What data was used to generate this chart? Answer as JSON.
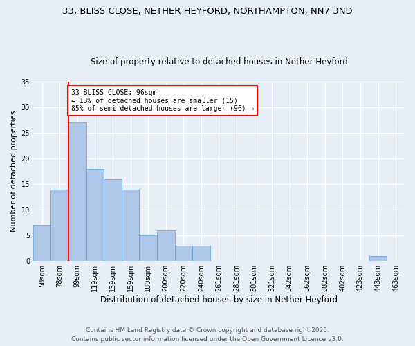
{
  "title_line1": "33, BLISS CLOSE, NETHER HEYFORD, NORTHAMPTON, NN7 3ND",
  "title_line2": "Size of property relative to detached houses in Nether Heyford",
  "xlabel": "Distribution of detached houses by size in Nether Heyford",
  "ylabel": "Number of detached properties",
  "footer_line1": "Contains HM Land Registry data © Crown copyright and database right 2025.",
  "footer_line2": "Contains public sector information licensed under the Open Government Licence v3.0.",
  "categories": [
    "58sqm",
    "78sqm",
    "99sqm",
    "119sqm",
    "139sqm",
    "159sqm",
    "180sqm",
    "200sqm",
    "220sqm",
    "240sqm",
    "261sqm",
    "281sqm",
    "301sqm",
    "321sqm",
    "342sqm",
    "362sqm",
    "382sqm",
    "402sqm",
    "423sqm",
    "443sqm",
    "463sqm"
  ],
  "values": [
    7,
    14,
    27,
    18,
    16,
    14,
    5,
    6,
    3,
    3,
    0,
    0,
    0,
    0,
    0,
    0,
    0,
    0,
    0,
    1,
    0
  ],
  "bar_color": "#aec6e8",
  "bar_edge_color": "#5a9fd4",
  "vline_index": 2,
  "vline_color": "red",
  "annotation_text": "33 BLISS CLOSE: 96sqm\n← 13% of detached houses are smaller (15)\n85% of semi-detached houses are larger (96) →",
  "ylim": [
    0,
    35
  ],
  "background_color": "#e8eef8",
  "grid_color": "#ffffff"
}
